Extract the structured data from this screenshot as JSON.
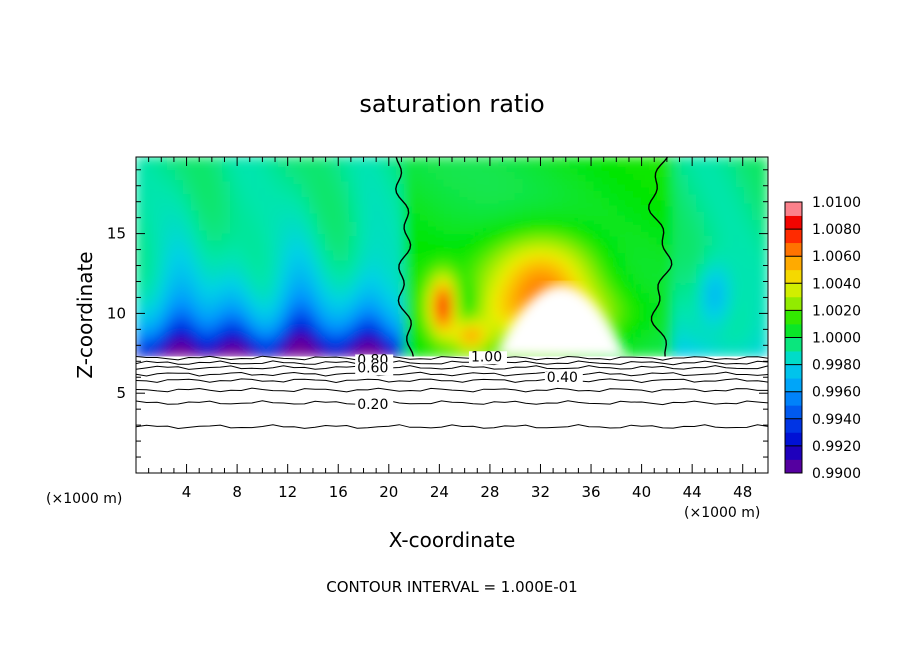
{
  "chart_data": {
    "type": "heatmap",
    "title": "saturation ratio",
    "xlabel": "X-coordinate",
    "ylabel": "Z-coordinate",
    "x_unit_left": "(×1000 m)",
    "x_unit_right": "(×1000 m)",
    "footer": "CONTOUR INTERVAL = 1.000E-01",
    "xlim": [
      0,
      50
    ],
    "ylim": [
      0,
      19.8
    ],
    "xticks": [
      4,
      8,
      12,
      16,
      20,
      24,
      28,
      32,
      36,
      40,
      44,
      48
    ],
    "yticks": [
      5,
      10,
      15
    ],
    "colorbar": {
      "min": 0.99,
      "max": 1.01,
      "labels": [
        "1.0100",
        "1.0080",
        "1.0060",
        "1.0040",
        "1.0020",
        "1.0000",
        "0.9980",
        "0.9960",
        "0.9940",
        "0.9920",
        "0.9900"
      ]
    },
    "contour_labels": [
      {
        "text": "0.80",
        "x": 17.5,
        "y": 6.8
      },
      {
        "text": "0.60",
        "x": 17.5,
        "y": 6.3
      },
      {
        "text": "1.00",
        "x": 26.5,
        "y": 7.0
      },
      {
        "text": "0.40",
        "x": 32.5,
        "y": 5.7
      },
      {
        "text": "0.20",
        "x": 17.5,
        "y": 4.0
      }
    ],
    "ground_contours_z": [
      2.9,
      4.4,
      5.2,
      5.8,
      6.2,
      6.6,
      6.9,
      7.2
    ],
    "saturation_line_x_left": 21.0,
    "saturation_line_x_right": 42.5,
    "cloud_base_z": 7.3
  }
}
